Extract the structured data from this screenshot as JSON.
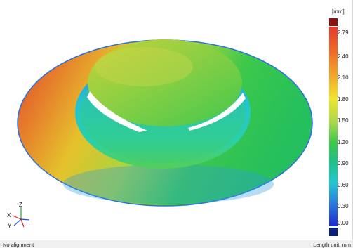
{
  "legend": {
    "unit": "[mm]",
    "ticks": [
      "2.79",
      "2.40",
      "2.10",
      "1.80",
      "1.50",
      "1.20",
      "0.90",
      "0.60",
      "0.30",
      "0.00"
    ]
  },
  "axes": {
    "x": "X",
    "y": "Y",
    "z": "Z"
  },
  "status": {
    "left": "No alignment",
    "right": "Length unit: mm"
  }
}
